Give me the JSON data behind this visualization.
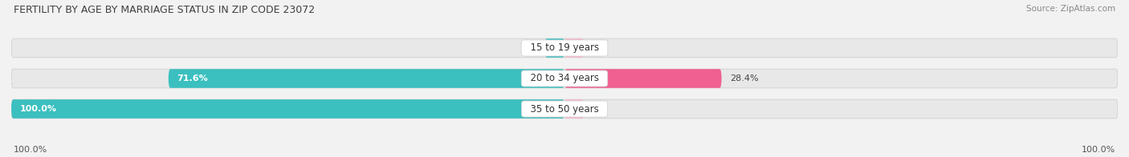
{
  "title": "FERTILITY BY AGE BY MARRIAGE STATUS IN ZIP CODE 23072",
  "source": "Source: ZipAtlas.com",
  "categories": [
    "15 to 19 years",
    "20 to 34 years",
    "35 to 50 years"
  ],
  "married_values": [
    0.0,
    71.6,
    100.0
  ],
  "unmarried_values": [
    0.0,
    28.4,
    0.0
  ],
  "married_color": "#3BBFBF",
  "unmarried_color": "#F06090",
  "unmarried_color_light": "#F9B8CB",
  "bar_bg_color": "#E8E8E8",
  "bar_bg_border": "#D5D5D5",
  "title_fontsize": 9.0,
  "label_fontsize": 8.5,
  "value_fontsize": 8.0,
  "legend_fontsize": 8.5,
  "source_fontsize": 7.5,
  "x_left_label": "100.0%",
  "x_right_label": "100.0%",
  "background_color": "#F2F2F2"
}
